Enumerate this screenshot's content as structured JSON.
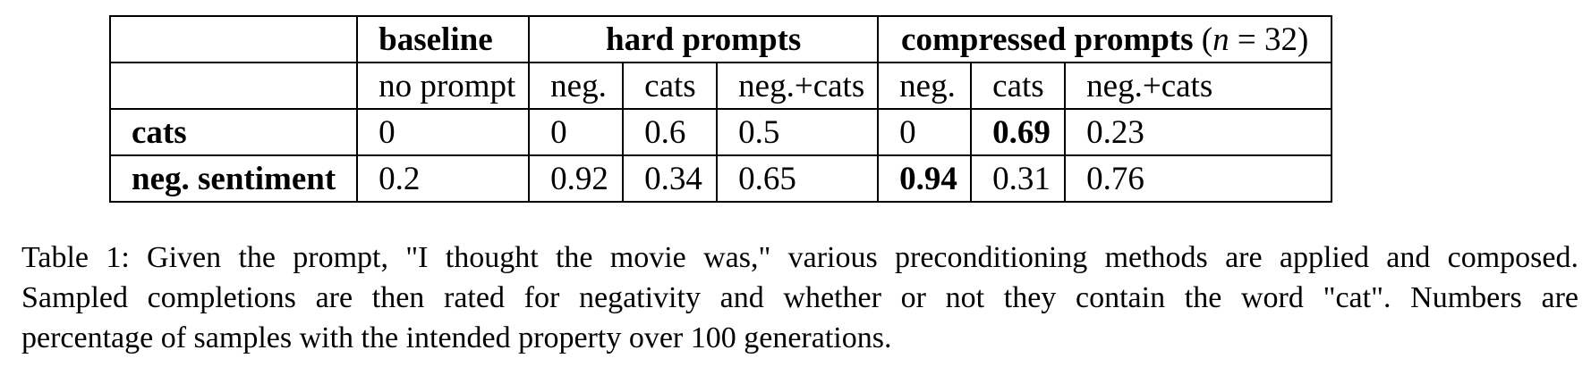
{
  "table": {
    "groups": {
      "baseline": "baseline",
      "hard": "hard prompts",
      "compressed_text": "compressed prompts",
      "compressed_n_open": "(",
      "compressed_n_var": "n",
      "compressed_n_eq": " = ",
      "compressed_n_val": "32",
      "compressed_n_close": ")"
    },
    "subheaders": [
      "no prompt",
      "neg.",
      "cats",
      "neg.+cats",
      "neg.",
      "cats",
      "neg.+cats"
    ],
    "rows": [
      {
        "label": "cats",
        "values": [
          "0",
          "0",
          "0.6",
          "0.5",
          "0",
          "0.69",
          "0.23"
        ]
      },
      {
        "label": "neg. sentiment",
        "values": [
          "0.2",
          "0.92",
          "0.34",
          "0.65",
          "0.94",
          "0.31",
          "0.76"
        ]
      }
    ]
  },
  "caption": {
    "line1": "Table 1: Given the prompt, \"I thought the movie was,\" various preconditioning methods are applied and composed.",
    "line2": "Sampled completions are then rated for negativity and whether or not they contain the word \"cat\". Numbers are",
    "line3": "percentage of samples with the intended property over 100 generations."
  }
}
